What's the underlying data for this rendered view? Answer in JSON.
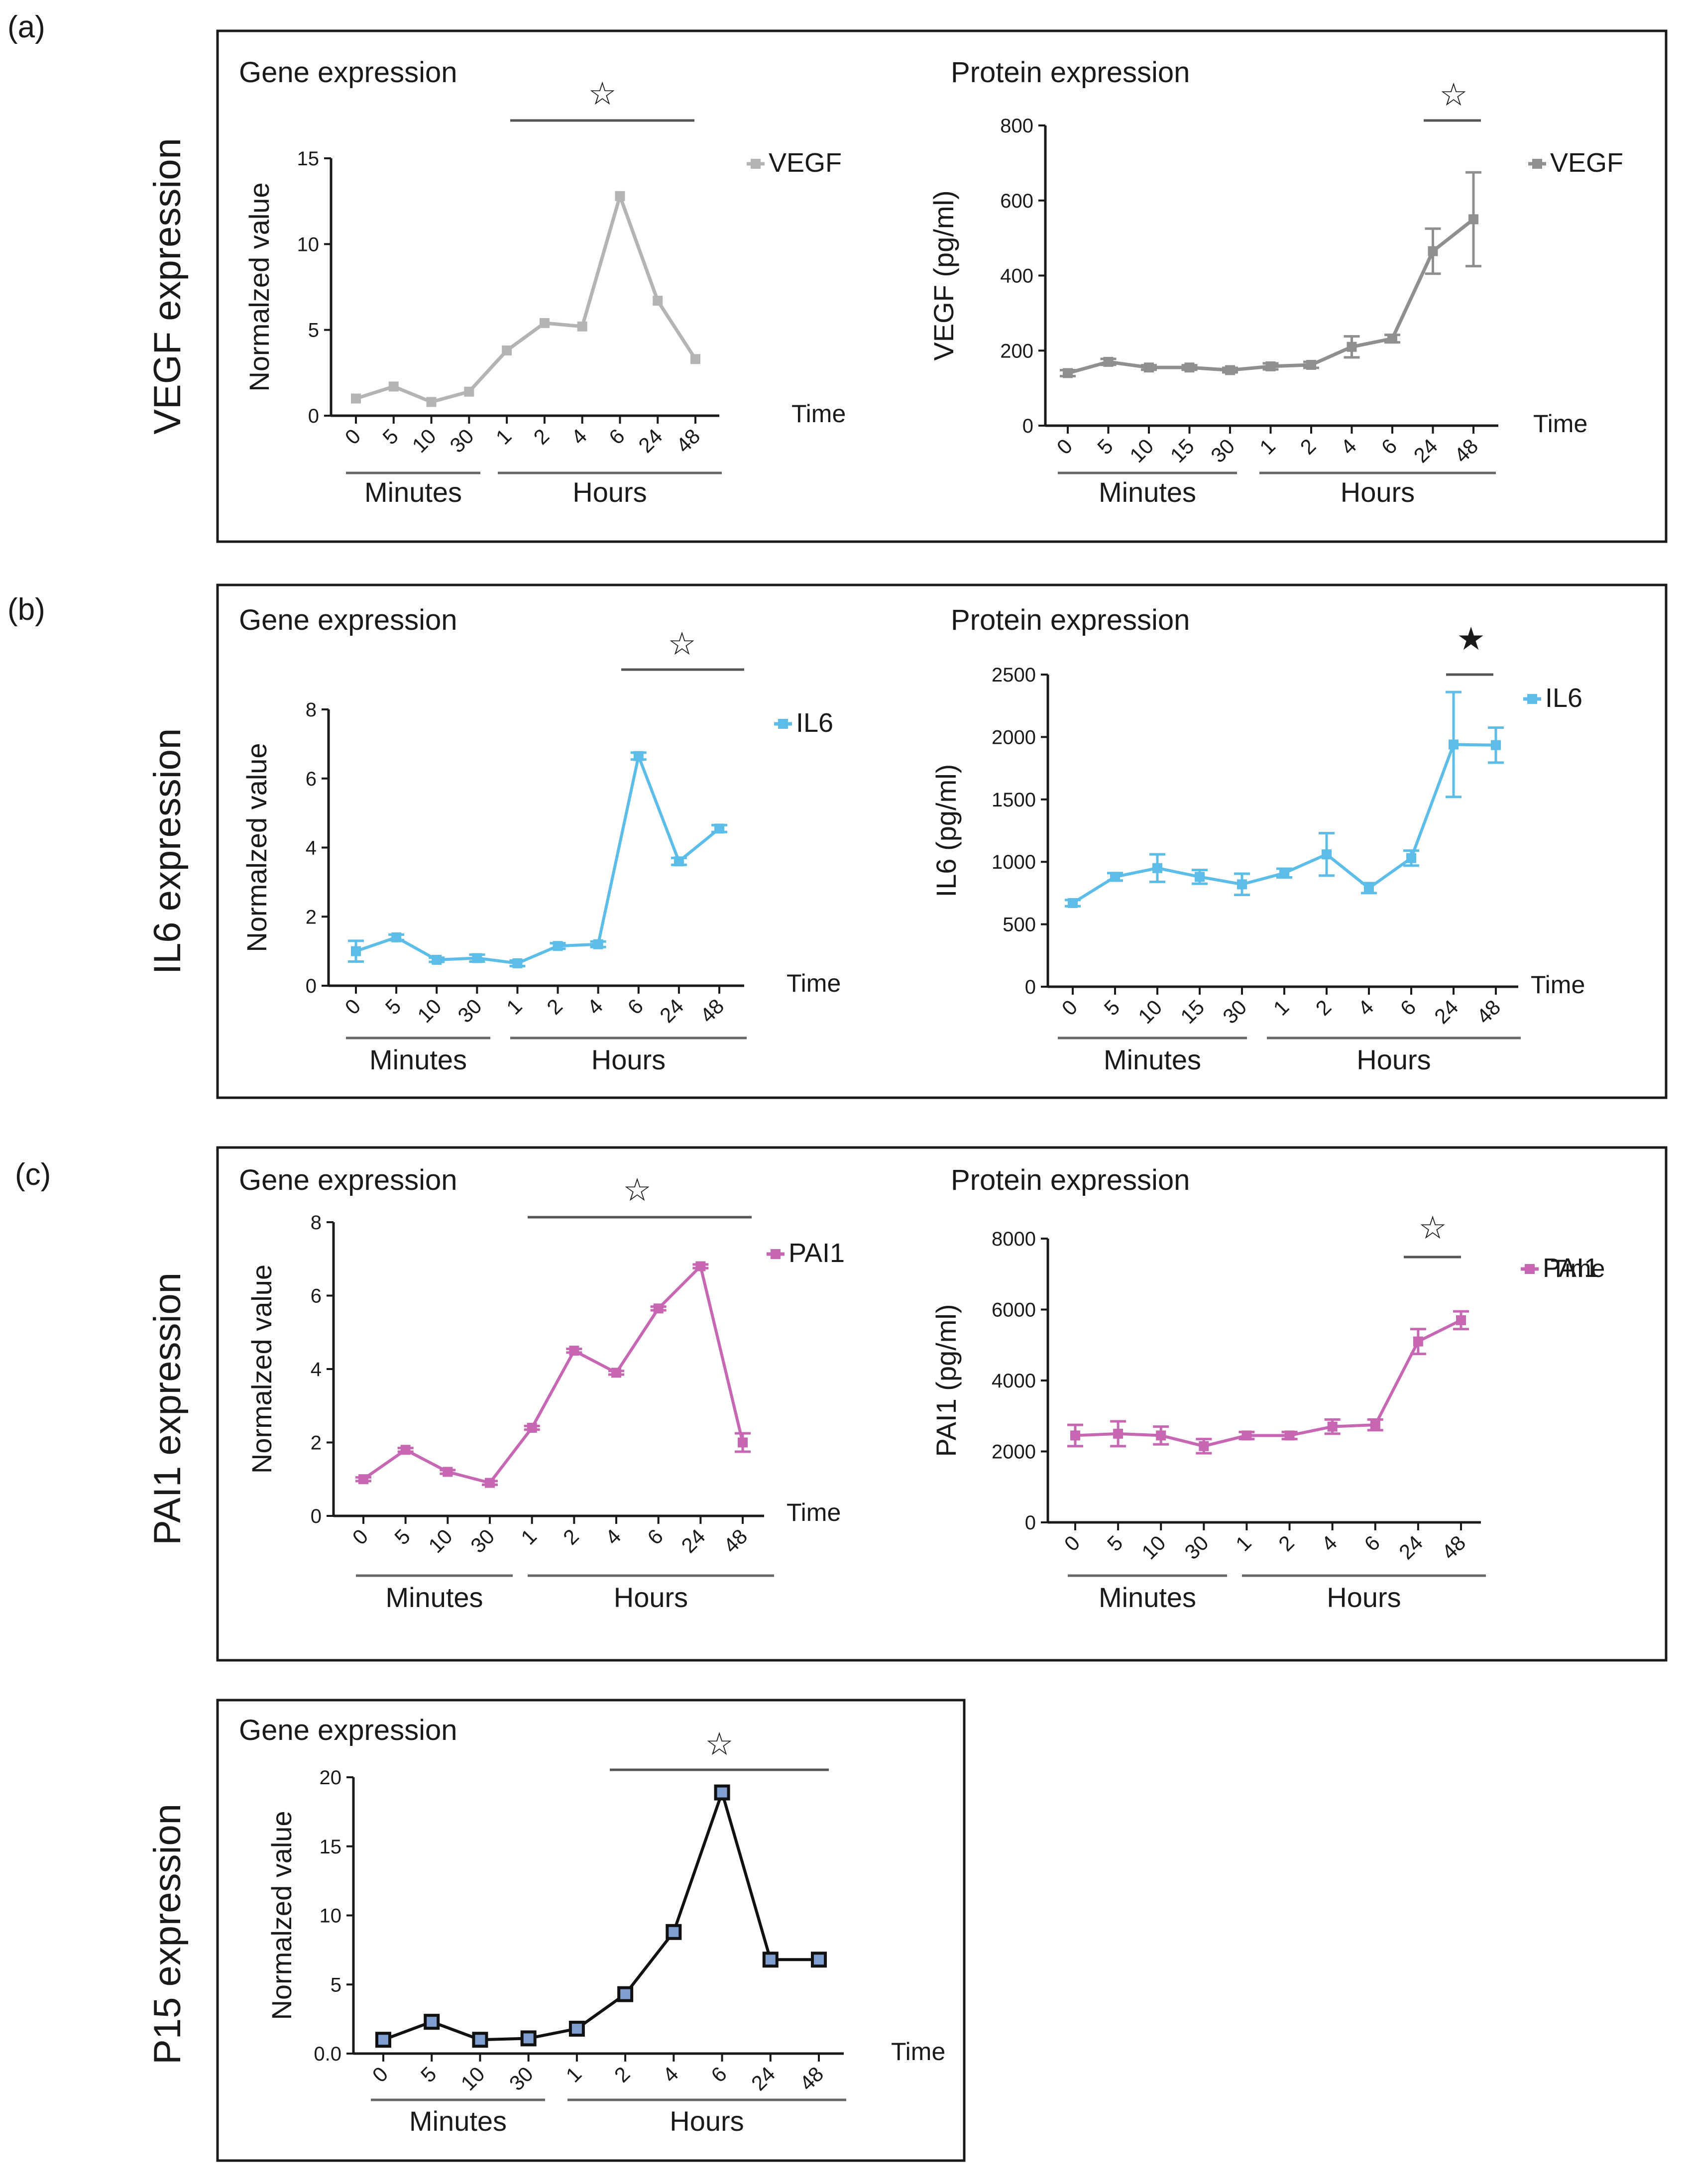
{
  "panels": [
    {
      "label": "(a)",
      "side_label": "VEGF expression"
    },
    {
      "label": "(b)",
      "side_label": "IL6 expression"
    },
    {
      "label": "(c)",
      "side_label": "PAI1 expression"
    },
    {
      "label": "",
      "side_label": "P15 expression"
    }
  ],
  "colors": {
    "vegf": "#b4b4b4",
    "vegf_protein": "#8f8f8f",
    "il6": "#5bbde8",
    "pai1": "#c766b3",
    "p15_line": "#111111",
    "p15_marker": "#7f9fd0"
  },
  "chart_data": [
    {
      "id": "vegf-gene",
      "type": "line",
      "title": "Gene expression",
      "xlabel": "Time",
      "ylabel": "Normalzed value",
      "categories": [
        "0",
        "5",
        "10",
        "30",
        "1",
        "2",
        "4",
        "6",
        "24",
        "48"
      ],
      "groups": [
        {
          "label": "Minutes",
          "from": 0,
          "to": 3
        },
        {
          "label": "Hours",
          "from": 4,
          "to": 9
        }
      ],
      "ylim": [
        0,
        15
      ],
      "yticks": [
        "0",
        "5",
        "10",
        "15"
      ],
      "series": [
        {
          "name": "VEGF",
          "values": [
            1.0,
            1.7,
            0.8,
            1.4,
            3.8,
            5.4,
            5.2,
            12.8,
            6.7,
            3.3
          ]
        }
      ],
      "significance": {
        "symbol": "☆",
        "from": 4,
        "to": 9
      }
    },
    {
      "id": "vegf-protein",
      "type": "line",
      "title": "Protein expression",
      "xlabel": "Time",
      "ylabel": "VEGF (pg/ml)",
      "categories": [
        "0",
        "5",
        "10",
        "15",
        "30",
        "1",
        "2",
        "4",
        "6",
        "24",
        "48"
      ],
      "groups": [
        {
          "label": "Minutes",
          "from": 0,
          "to": 4
        },
        {
          "label": "Hours",
          "from": 5,
          "to": 10
        }
      ],
      "ylim": [
        0,
        800
      ],
      "yticks": [
        "0",
        "200",
        "400",
        "600",
        "800"
      ],
      "series": [
        {
          "name": "VEGF",
          "values": [
            140,
            170,
            155,
            155,
            148,
            158,
            162,
            210,
            232,
            465,
            550
          ],
          "errors": [
            8,
            8,
            6,
            6,
            6,
            8,
            8,
            28,
            10,
            60,
            125
          ]
        }
      ],
      "significance": {
        "symbol": "☆",
        "from": 9,
        "to": 10
      }
    },
    {
      "id": "il6-gene",
      "type": "line",
      "title": "Gene expression",
      "xlabel": "Time",
      "ylabel": "Normalzed value",
      "categories": [
        "0",
        "5",
        "10",
        "30",
        "1",
        "2",
        "4",
        "6",
        "24",
        "48"
      ],
      "groups": [
        {
          "label": "Minutes",
          "from": 0,
          "to": 3
        },
        {
          "label": "Hours",
          "from": 4,
          "to": 9
        }
      ],
      "ylim": [
        0,
        8
      ],
      "yticks": [
        "0",
        "2",
        "4",
        "6",
        "8"
      ],
      "series": [
        {
          "name": "IL6",
          "values": [
            1.0,
            1.4,
            0.75,
            0.8,
            0.65,
            1.15,
            1.2,
            6.65,
            3.6,
            4.55
          ],
          "errors": [
            0.3,
            0.08,
            0.06,
            0.1,
            0.08,
            0.08,
            0.08,
            0.1,
            0.1,
            0.1
          ]
        }
      ],
      "significance": {
        "symbol": "☆",
        "from": 7,
        "to": 9
      }
    },
    {
      "id": "il6-protein",
      "type": "line",
      "title": "Protein expression",
      "xlabel": "Time",
      "ylabel": "IL6 (pg/ml)",
      "categories": [
        "0",
        "5",
        "10",
        "15",
        "30",
        "1",
        "2",
        "4",
        "6",
        "24",
        "48"
      ],
      "groups": [
        {
          "label": "Minutes",
          "from": 0,
          "to": 4
        },
        {
          "label": "Hours",
          "from": 5,
          "to": 10
        }
      ],
      "ylim": [
        0,
        2500
      ],
      "yticks": [
        "0",
        "500",
        "1000",
        "1500",
        "2000",
        "2500"
      ],
      "series": [
        {
          "name": "IL6",
          "values": [
            670,
            880,
            950,
            880,
            820,
            910,
            1060,
            790,
            1030,
            1940,
            1935
          ],
          "errors": [
            25,
            30,
            110,
            55,
            85,
            35,
            170,
            40,
            60,
            420,
            140
          ]
        }
      ],
      "significance": {
        "symbol": "★",
        "from": 9,
        "to": 10
      }
    },
    {
      "id": "pai1-gene",
      "type": "line",
      "title": "Gene expression",
      "xlabel": "Time",
      "ylabel": "Normalzed value",
      "categories": [
        "0",
        "5",
        "10",
        "30",
        "1",
        "2",
        "4",
        "6",
        "24",
        "48"
      ],
      "groups": [
        {
          "label": "Minutes",
          "from": 0,
          "to": 3
        },
        {
          "label": "Hours",
          "from": 4,
          "to": 9
        }
      ],
      "ylim": [
        0,
        8
      ],
      "yticks": [
        "0",
        "2",
        "4",
        "6",
        "8"
      ],
      "series": [
        {
          "name": "PAI1",
          "values": [
            1.0,
            1.8,
            1.2,
            0.9,
            2.4,
            4.5,
            3.9,
            5.65,
            6.8,
            2.0
          ],
          "errors": [
            0.05,
            0.05,
            0.05,
            0.05,
            0.05,
            0.05,
            0.05,
            0.05,
            0.05,
            0.25
          ]
        }
      ],
      "significance": {
        "symbol": "☆",
        "from": 4,
        "to": 9
      }
    },
    {
      "id": "pai1-protein",
      "type": "line",
      "title": "Protein expression",
      "xlabel": "Time",
      "ylabel": "PAI1 (pg/ml)",
      "categories": [
        "0",
        "5",
        "10",
        "30",
        "1",
        "2",
        "4",
        "6",
        "24",
        "48"
      ],
      "groups": [
        {
          "label": "Minutes",
          "from": 0,
          "to": 3
        },
        {
          "label": "Hours",
          "from": 4,
          "to": 9
        }
      ],
      "ylim": [
        0,
        8000
      ],
      "yticks": [
        "0",
        "2000",
        "4000",
        "6000",
        "8000"
      ],
      "series": [
        {
          "name": "PAI1",
          "values": [
            2450,
            2500,
            2450,
            2150,
            2450,
            2450,
            2700,
            2750,
            5100,
            5700
          ],
          "errors": [
            300,
            350,
            250,
            200,
            100,
            100,
            200,
            150,
            350,
            250
          ]
        }
      ],
      "significance": {
        "symbol": "☆",
        "from": 8,
        "to": 9
      }
    },
    {
      "id": "p15-gene",
      "type": "line",
      "title": "Gene expression",
      "xlabel": "Time",
      "ylabel": "Normalzed value",
      "categories": [
        "0",
        "5",
        "10",
        "30",
        "1",
        "2",
        "4",
        "6",
        "24",
        "48"
      ],
      "groups": [
        {
          "label": "Minutes",
          "from": 0,
          "to": 3
        },
        {
          "label": "Hours",
          "from": 4,
          "to": 9
        }
      ],
      "ylim": [
        0,
        20
      ],
      "yticks": [
        "0.0",
        "5",
        "10",
        "15",
        "20"
      ],
      "series": [
        {
          "name": "P15",
          "values": [
            1.0,
            2.3,
            1.0,
            1.1,
            1.8,
            4.3,
            8.8,
            18.9,
            6.8,
            6.8
          ]
        }
      ],
      "significance": {
        "symbol": "☆",
        "from": 5,
        "to": 9
      }
    }
  ]
}
